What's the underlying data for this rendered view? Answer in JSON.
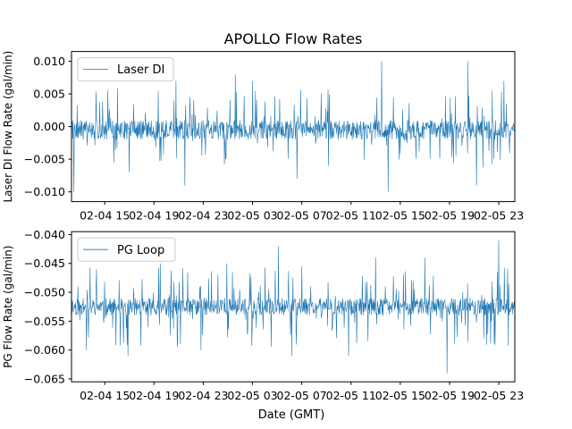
{
  "figure_title": "APOLLO Flow Rates",
  "xlabel": "Date (GMT)",
  "x_tick_labels": [
    "02-04 15",
    "02-04 19",
    "02-04 23",
    "02-05 03",
    "02-05 07",
    "02-05 11",
    "02-05 15",
    "02-05 19",
    "02-05 23"
  ],
  "colors": {
    "series": "#1f77b4",
    "axes": "#000000",
    "background": "#ffffff"
  },
  "chart_data": [
    {
      "type": "line",
      "title": "APOLLO Flow Rates",
      "ylabel": "Laser DI Flow Rate (gal/min)",
      "xlabel": "",
      "legend": "Laser DI",
      "legend_position": "top-left",
      "ylim": [
        -0.0115,
        0.0115
      ],
      "yticks": [
        -0.01,
        -0.005,
        0.0,
        0.005,
        0.01
      ],
      "ytick_labels": [
        "−0.010",
        "−0.005",
        "0.000",
        "0.005",
        "0.010"
      ],
      "x_range_hours": [
        -2.7,
        33.3
      ],
      "x_ticks_hours": [
        0,
        4,
        8,
        12,
        16,
        20,
        24,
        28,
        32
      ],
      "x_tick_labels": [
        "02-04 15",
        "02-04 19",
        "02-04 23",
        "02-05 03",
        "02-05 07",
        "02-05 11",
        "02-05 15",
        "02-05 19",
        "02-05 23"
      ],
      "series": [
        {
          "name": "Laser DI",
          "baseline": -0.001,
          "band": [
            -0.002,
            0.001
          ],
          "min": -0.01,
          "max": 0.01,
          "samples": 1100,
          "seed": 7
        }
      ],
      "spikes": [
        {
          "x": -2.5,
          "y": -0.01
        },
        {
          "x": 22.5,
          "y": 0.01
        },
        {
          "x": 29.5,
          "y": 0.01
        },
        {
          "x": 23.0,
          "y": -0.01
        },
        {
          "x": 30.2,
          "y": -0.009
        },
        {
          "x": 6.5,
          "y": -0.009
        },
        {
          "x": 5.8,
          "y": 0.007
        },
        {
          "x": 10.6,
          "y": 0.008
        },
        {
          "x": 32.4,
          "y": 0.007
        },
        {
          "x": 15.6,
          "y": -0.008
        },
        {
          "x": 12.0,
          "y": 0.007
        },
        {
          "x": 2.0,
          "y": -0.007
        }
      ],
      "grid": false
    },
    {
      "type": "line",
      "title": "",
      "ylabel": "PG Flow Rate (gal/min)",
      "xlabel": "Date (GMT)",
      "legend": "PG Loop",
      "legend_position": "top-left",
      "ylim": [
        -0.0655,
        -0.0395
      ],
      "yticks": [
        -0.065,
        -0.06,
        -0.055,
        -0.05,
        -0.045,
        -0.04
      ],
      "ytick_labels": [
        "−0.065",
        "−0.060",
        "−0.055",
        "−0.050",
        "−0.045",
        "−0.040"
      ],
      "x_range_hours": [
        -2.7,
        33.3
      ],
      "x_ticks_hours": [
        0,
        4,
        8,
        12,
        16,
        20,
        24,
        28,
        32
      ],
      "x_tick_labels": [
        "02-04 15",
        "02-04 19",
        "02-04 23",
        "02-05 03",
        "02-05 07",
        "02-05 11",
        "02-05 15",
        "02-05 19",
        "02-05 23"
      ],
      "series": [
        {
          "name": "PG Loop",
          "baseline": -0.0525,
          "band": [
            -0.054,
            -0.051
          ],
          "min": -0.064,
          "max": -0.041,
          "samples": 1100,
          "seed": 11
        }
      ],
      "spikes": [
        {
          "x": 27.8,
          "y": -0.064
        },
        {
          "x": 32.0,
          "y": -0.041
        },
        {
          "x": 14.1,
          "y": -0.042
        },
        {
          "x": 1.9,
          "y": -0.061
        },
        {
          "x": 7.8,
          "y": -0.06
        },
        {
          "x": 15.2,
          "y": -0.061
        },
        {
          "x": -1.5,
          "y": -0.06
        },
        {
          "x": 19.8,
          "y": -0.061
        },
        {
          "x": 26.0,
          "y": -0.044
        },
        {
          "x": 4.5,
          "y": -0.045
        },
        {
          "x": 22.0,
          "y": -0.044
        },
        {
          "x": 9.9,
          "y": -0.045
        }
      ],
      "grid": false
    }
  ]
}
